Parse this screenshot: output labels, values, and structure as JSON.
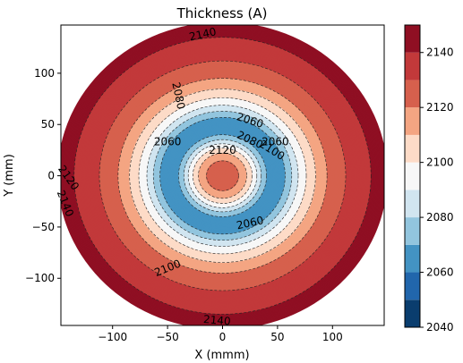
{
  "chart_data": {
    "type": "contour",
    "title": "Thickness (A)",
    "xlabel": "X (mmm)",
    "ylabel": "Y (mm)",
    "xlim": [
      -147,
      147
    ],
    "ylim": [
      -146,
      147
    ],
    "xticks": [
      -100,
      -50,
      0,
      50,
      100
    ],
    "yticks": [
      -100,
      -50,
      0,
      50,
      100
    ],
    "wafer_radius_mm": 150,
    "colorbar": {
      "range": [
        2040,
        2150
      ],
      "ticks": [
        2040,
        2060,
        2080,
        2100,
        2120,
        2140
      ],
      "levels": [
        2040,
        2050,
        2060,
        2070,
        2080,
        2090,
        2100,
        2110,
        2120,
        2130,
        2140,
        2150
      ],
      "colors": [
        "#0a3d6e",
        "#2166ac",
        "#4393c3",
        "#92c5de",
        "#d1e5f0",
        "#f7f7f7",
        "#fddbc7",
        "#f4a582",
        "#d6604d",
        "#c2393a",
        "#8f0f23"
      ]
    },
    "radial_profile": {
      "r_mm": [
        0,
        10,
        20,
        28,
        36,
        44,
        52,
        60,
        70,
        80,
        90,
        100,
        110,
        120,
        130,
        140,
        150
      ],
      "thickness": [
        2128,
        2125,
        2114,
        2098,
        2078,
        2062,
        2062,
        2075,
        2092,
        2105,
        2116,
        2124,
        2129,
        2134,
        2138,
        2142,
        2146
      ]
    },
    "contour_labels": [
      {
        "text": "2140",
        "x": -18,
        "y": 138,
        "angle": -12
      },
      {
        "text": "2080",
        "x": -40,
        "y": 78,
        "angle": 78
      },
      {
        "text": "2060",
        "x": 25,
        "y": 54,
        "angle": 18
      },
      {
        "text": "2080",
        "x": 25,
        "y": 35,
        "angle": 25
      },
      {
        "text": "2060",
        "x": -50,
        "y": 33,
        "angle": 0
      },
      {
        "text": "2060",
        "x": 48,
        "y": 33,
        "angle": 0
      },
      {
        "text": "2100",
        "x": 45,
        "y": 25,
        "angle": 32
      },
      {
        "text": "2120",
        "x": 0,
        "y": 25,
        "angle": 0
      },
      {
        "text": "2120",
        "x": -140,
        "y": -2,
        "angle": 55
      },
      {
        "text": "2140",
        "x": -143,
        "y": -27,
        "angle": 68
      },
      {
        "text": "2060",
        "x": 25,
        "y": -46,
        "angle": -12
      },
      {
        "text": "2100",
        "x": -50,
        "y": -90,
        "angle": -22
      },
      {
        "text": "2140",
        "x": -5,
        "y": -141,
        "angle": 5
      }
    ]
  }
}
